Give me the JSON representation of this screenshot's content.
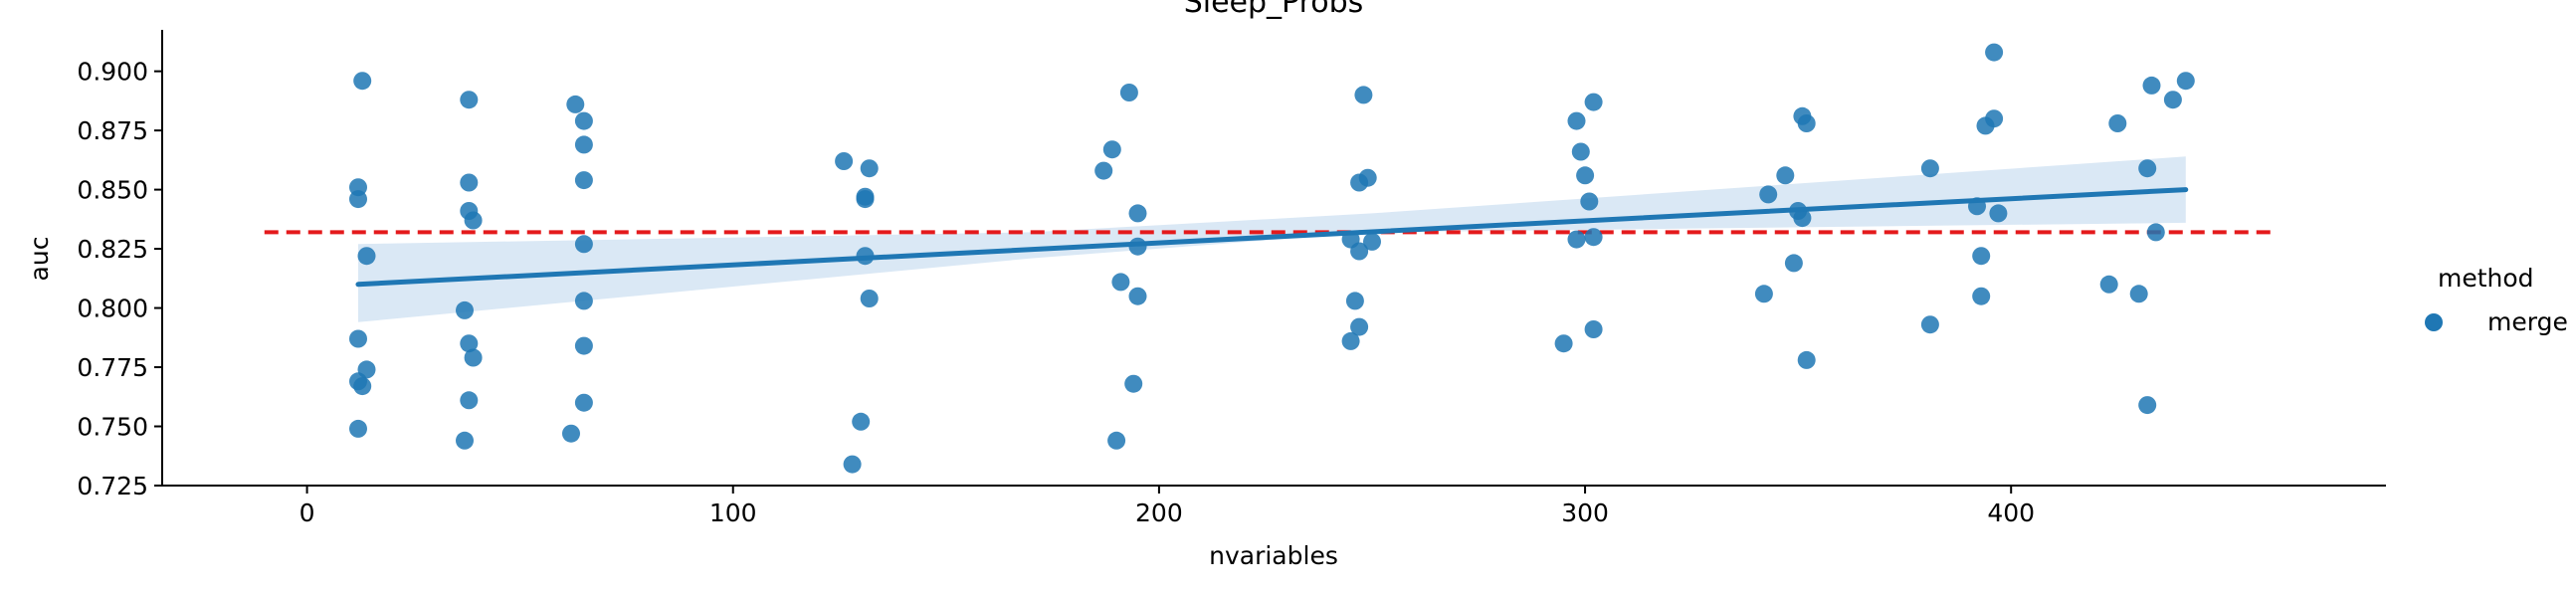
{
  "chart_data": {
    "type": "scatter",
    "title": "Sleep_Probs",
    "xlabel": "nvariables",
    "ylabel": "auc",
    "xlim": [
      -34,
      488
    ],
    "ylim": [
      0.725,
      0.9175
    ],
    "xticks": [
      0,
      100,
      200,
      300,
      400
    ],
    "yticks": [
      0.725,
      0.75,
      0.775,
      0.8,
      0.825,
      0.85,
      0.875,
      0.9
    ],
    "xtick_labels": [
      "0",
      "100",
      "200",
      "300",
      "400"
    ],
    "ytick_labels": [
      "0.725",
      "0.750",
      "0.775",
      "0.800",
      "0.825",
      "0.850",
      "0.875",
      "0.900"
    ],
    "grid": false,
    "legend": {
      "title": "method",
      "entries": [
        "merge"
      ],
      "placement": "right"
    },
    "colors": {
      "points": "#1f77b4",
      "regression": "#1f77b4",
      "ci_band": "#c6dbef",
      "reference": "#e41a1c"
    },
    "reference_line": {
      "y": 0.832,
      "x_range": [
        -10,
        462
      ],
      "style": "dashed"
    },
    "regression": {
      "x_range": [
        12,
        441
      ],
      "y_start": 0.81,
      "y_end": 0.85,
      "ci_lower": [
        0.794,
        0.836
      ],
      "ci_center": [
        0.818,
        0.828,
        0.82,
        0.835
      ],
      "ci_upper": [
        0.827,
        0.864
      ],
      "ci_center_x": [
        170,
        250
      ],
      "ci_center_lower": [
        0.821,
        0.832
      ],
      "ci_center_upper": [
        0.832,
        0.84
      ]
    },
    "series": [
      {
        "name": "merge",
        "x": [
          13,
          12,
          12,
          14,
          12,
          14,
          12,
          13,
          12,
          38,
          38,
          38,
          39,
          37,
          38,
          39,
          38,
          37,
          63,
          65,
          65,
          65,
          65,
          65,
          65,
          65,
          62,
          126,
          132,
          131,
          131,
          131,
          132,
          130,
          128,
          193,
          189,
          187,
          195,
          195,
          191,
          195,
          194,
          190,
          248,
          249,
          247,
          245,
          247,
          250,
          246,
          247,
          245,
          302,
          298,
          299,
          300,
          301,
          302,
          298,
          302,
          295,
          347,
          343,
          350,
          351,
          349,
          351,
          342,
          352,
          352,
          381,
          394,
          396,
          397,
          392,
          393,
          393,
          381,
          433,
          432,
          441,
          438,
          425,
          423,
          434,
          430,
          432
        ],
        "y": [
          0.896,
          0.851,
          0.846,
          0.822,
          0.787,
          0.774,
          0.769,
          0.767,
          0.749,
          0.888,
          0.853,
          0.841,
          0.837,
          0.799,
          0.785,
          0.779,
          0.761,
          0.744,
          0.886,
          0.879,
          0.869,
          0.854,
          0.827,
          0.803,
          0.784,
          0.76,
          0.747,
          0.862,
          0.859,
          0.847,
          0.846,
          0.822,
          0.804,
          0.752,
          0.734,
          0.891,
          0.867,
          0.858,
          0.84,
          0.826,
          0.811,
          0.805,
          0.768,
          0.744,
          0.89,
          0.855,
          0.853,
          0.829,
          0.824,
          0.828,
          0.803,
          0.792,
          0.786,
          0.887,
          0.879,
          0.866,
          0.856,
          0.845,
          0.83,
          0.829,
          0.791,
          0.785,
          0.856,
          0.848,
          0.841,
          0.838,
          0.819,
          0.881,
          0.806,
          0.878,
          0.778,
          0.859,
          0.877,
          0.88,
          0.84,
          0.843,
          0.822,
          0.805,
          0.793,
          0.894,
          0.859,
          0.896,
          0.888,
          0.878,
          0.81,
          0.832,
          0.806,
          0.759
        ]
      },
      {
        "name": "",
        "x": [
          396
        ],
        "y": [
          0.908
        ]
      }
    ]
  }
}
